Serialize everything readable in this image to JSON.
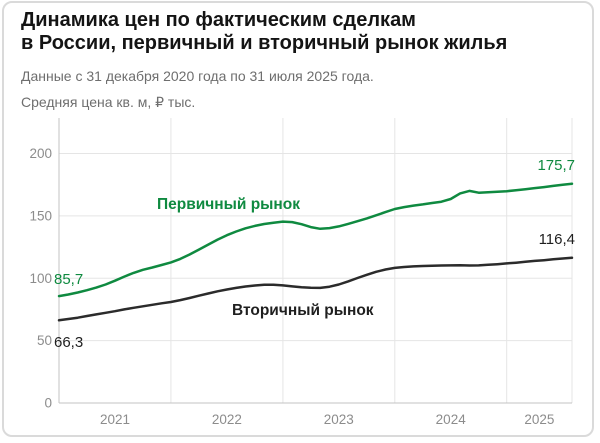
{
  "header": {
    "title_line1": "Динамика цен по фактическим сделкам",
    "title_line2": "в России, первичный и вторичный рынок жилья",
    "subtitle_period": "Данные с 31 декабря 2020 года по 31 июля 2025 года.",
    "subtitle_units": "Средняя цена кв. м, ₽ тыс."
  },
  "chart_data": {
    "type": "line",
    "title": "Динамика цен по фактическим сделкам в России, первичный и вторичный рынок жилья",
    "ylabel": "Средняя цена кв. м, ₽ тыс.",
    "x_start": "2020-12-31",
    "x_end": "2025-07-31",
    "x_step": "month",
    "x_tick_labels": [
      "2021",
      "2022",
      "2023",
      "2024",
      "2025"
    ],
    "x_gridline_months": [
      12,
      24,
      36,
      48,
      55
    ],
    "y_ticks": [
      0,
      50,
      100,
      150,
      200
    ],
    "ylim": [
      0,
      228
    ],
    "grid": true,
    "legend": "inline-labels",
    "series": [
      {
        "name": "Первичный рынок",
        "color": "#0f8a40",
        "start_value": 85.7,
        "end_value": 175.7,
        "start_label": "85,7",
        "end_label": "175,7",
        "values": [
          85.7,
          87.0,
          88.6,
          90.4,
          92.5,
          95.0,
          98.0,
          101.3,
          104.3,
          106.8,
          108.6,
          110.6,
          112.7,
          115.5,
          119.0,
          123.0,
          127.0,
          131.0,
          134.5,
          137.5,
          140.0,
          142.0,
          143.5,
          144.5,
          145.4,
          145.0,
          143.3,
          141.0,
          139.6,
          140.2,
          141.6,
          143.6,
          145.7,
          148.0,
          150.5,
          153.0,
          155.5,
          157.0,
          158.2,
          159.2,
          160.3,
          161.4,
          163.5,
          168.0,
          170.0,
          168.6,
          168.9,
          169.3,
          169.8,
          170.6,
          171.4,
          172.3,
          173.1,
          174.0,
          174.9,
          175.7
        ]
      },
      {
        "name": "Вторичный рынок",
        "color": "#2b2b2b",
        "start_value": 66.3,
        "end_value": 116.4,
        "start_label": "66,3",
        "end_label": "116,4",
        "values": [
          66.3,
          67.3,
          68.4,
          69.7,
          71.0,
          72.3,
          73.6,
          75.0,
          76.3,
          77.5,
          78.7,
          79.9,
          81.0,
          82.5,
          84.2,
          86.0,
          87.8,
          89.5,
          91.0,
          92.3,
          93.4,
          94.2,
          94.8,
          94.8,
          94.3,
          93.5,
          92.8,
          92.4,
          92.3,
          93.2,
          95.0,
          97.5,
          100.2,
          102.8,
          105.2,
          107.0,
          108.3,
          109.0,
          109.5,
          109.8,
          110.0,
          110.2,
          110.3,
          110.4,
          110.2,
          110.3,
          110.8,
          111.3,
          111.9,
          112.5,
          113.2,
          113.9,
          114.5,
          115.2,
          115.8,
          116.4
        ]
      }
    ]
  },
  "colors": {
    "primary_green": "#0f8a40",
    "secondary_dark": "#2b2b2b",
    "label_dark": "#1f1f1f",
    "grid": "#e5e5e5",
    "axis": "#c3c3c3",
    "tick_text": "#8c8c8c",
    "title_text": "#141414",
    "subtitle_text": "#6e6e6e",
    "frame_border": "#dadada",
    "background": "#ffffff"
  }
}
